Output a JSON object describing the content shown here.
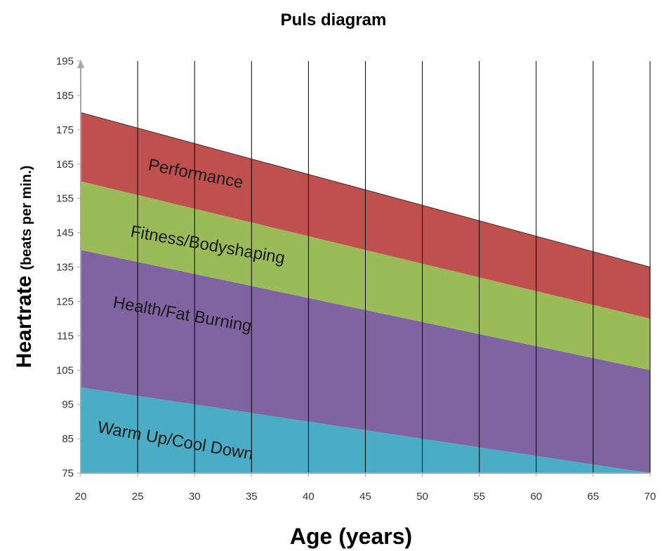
{
  "chart_data": {
    "type": "area",
    "title": "Puls diagram",
    "xlabel": "Age (years)",
    "ylabel": "Heartrate",
    "ylabel_unit": "(beats per min.)",
    "xlim": [
      20,
      70
    ],
    "ylim": [
      75,
      195
    ],
    "x_ticks": [
      20,
      25,
      30,
      35,
      40,
      45,
      50,
      55,
      60,
      65,
      70
    ],
    "y_ticks": [
      75,
      85,
      95,
      105,
      115,
      125,
      135,
      145,
      155,
      165,
      175,
      185,
      195
    ],
    "grid": "vertical",
    "zones": [
      {
        "label": "Warm Up/Cool Down",
        "color": "#4bacc6",
        "lower": {
          "x": [
            20,
            70
          ],
          "y": [
            75,
            75
          ]
        },
        "upper": {
          "x": [
            20,
            70
          ],
          "y": [
            100,
            75
          ]
        }
      },
      {
        "label": "Health/Fat Burning",
        "color": "#8064a2",
        "lower": {
          "x": [
            20,
            70
          ],
          "y": [
            100,
            75
          ]
        },
        "upper": {
          "x": [
            20,
            70
          ],
          "y": [
            140,
            105
          ]
        }
      },
      {
        "label": "Fitness/Bodyshaping",
        "color": "#9bbb59",
        "lower": {
          "x": [
            20,
            70
          ],
          "y": [
            140,
            105
          ]
        },
        "upper": {
          "x": [
            20,
            70
          ],
          "y": [
            160,
            120
          ]
        }
      },
      {
        "label": "Performance",
        "color": "#c0504d",
        "lower": {
          "x": [
            20,
            70
          ],
          "y": [
            160,
            120
          ]
        },
        "upper": {
          "x": [
            20,
            70
          ],
          "y": [
            180,
            135
          ]
        }
      }
    ]
  }
}
